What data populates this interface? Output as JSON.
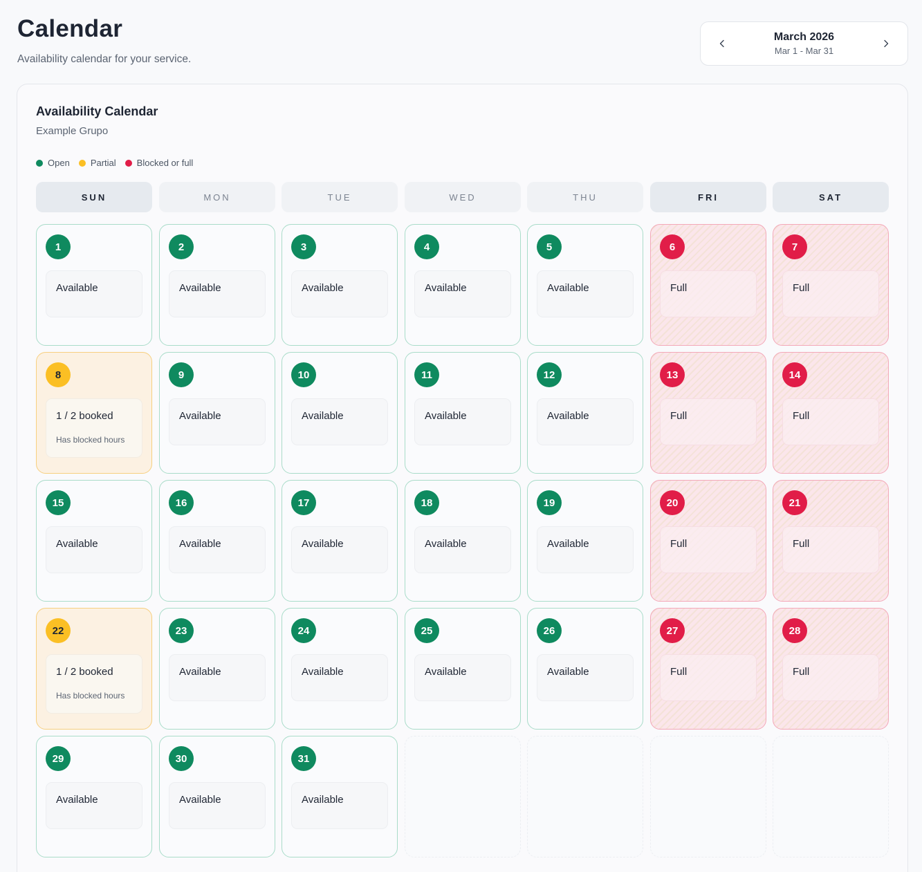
{
  "header": {
    "title": "Calendar",
    "subtitle": "Availability calendar for your service."
  },
  "month_nav": {
    "label": "March 2026",
    "range": "Mar 1 - Mar 31",
    "prev_icon": "chevron-left-icon",
    "next_icon": "chevron-right-icon"
  },
  "card": {
    "title": "Availability Calendar",
    "subtitle": "Example Grupo"
  },
  "legend": [
    {
      "label": "Open",
      "color": "#0f8a5f"
    },
    {
      "label": "Partial",
      "color": "#fbbf24"
    },
    {
      "label": "Blocked or full",
      "color": "#e11d48"
    }
  ],
  "weekdays": [
    "SUN",
    "MON",
    "TUE",
    "WED",
    "THU",
    "FRI",
    "SAT"
  ],
  "highlighted_weekdays": [
    "SUN",
    "FRI",
    "SAT"
  ],
  "colors": {
    "open": "#0f8a5f",
    "partial": "#fbbf24",
    "full": "#e11d48"
  },
  "days": [
    {
      "num": "1",
      "status": "open",
      "text": "Available"
    },
    {
      "num": "2",
      "status": "open",
      "text": "Available"
    },
    {
      "num": "3",
      "status": "open",
      "text": "Available"
    },
    {
      "num": "4",
      "status": "open",
      "text": "Available"
    },
    {
      "num": "5",
      "status": "open",
      "text": "Available"
    },
    {
      "num": "6",
      "status": "full",
      "text": "Full"
    },
    {
      "num": "7",
      "status": "full",
      "text": "Full"
    },
    {
      "num": "8",
      "status": "partial",
      "text": "1 / 2 booked",
      "note": "Has blocked hours"
    },
    {
      "num": "9",
      "status": "open",
      "text": "Available"
    },
    {
      "num": "10",
      "status": "open",
      "text": "Available"
    },
    {
      "num": "11",
      "status": "open",
      "text": "Available"
    },
    {
      "num": "12",
      "status": "open",
      "text": "Available"
    },
    {
      "num": "13",
      "status": "full",
      "text": "Full"
    },
    {
      "num": "14",
      "status": "full",
      "text": "Full"
    },
    {
      "num": "15",
      "status": "open",
      "text": "Available"
    },
    {
      "num": "16",
      "status": "open",
      "text": "Available"
    },
    {
      "num": "17",
      "status": "open",
      "text": "Available"
    },
    {
      "num": "18",
      "status": "open",
      "text": "Available"
    },
    {
      "num": "19",
      "status": "open",
      "text": "Available"
    },
    {
      "num": "20",
      "status": "full",
      "text": "Full"
    },
    {
      "num": "21",
      "status": "full",
      "text": "Full"
    },
    {
      "num": "22",
      "status": "partial",
      "text": "1 / 2 booked",
      "note": "Has blocked hours"
    },
    {
      "num": "23",
      "status": "open",
      "text": "Available"
    },
    {
      "num": "24",
      "status": "open",
      "text": "Available"
    },
    {
      "num": "25",
      "status": "open",
      "text": "Available"
    },
    {
      "num": "26",
      "status": "open",
      "text": "Available"
    },
    {
      "num": "27",
      "status": "full",
      "text": "Full"
    },
    {
      "num": "28",
      "status": "full",
      "text": "Full"
    },
    {
      "num": "29",
      "status": "open",
      "text": "Available"
    },
    {
      "num": "30",
      "status": "open",
      "text": "Available"
    },
    {
      "num": "31",
      "status": "open",
      "text": "Available"
    }
  ]
}
